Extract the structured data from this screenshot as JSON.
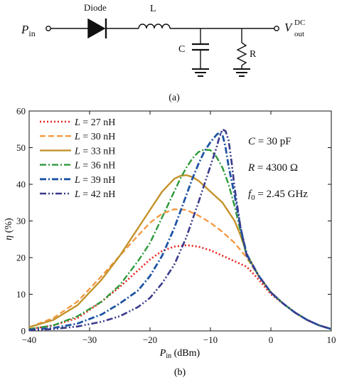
{
  "circuit": {
    "input_label": "P",
    "input_sub": "in",
    "diode_label": "Diode",
    "inductor_label": "L",
    "capacitor_label": "C",
    "resistor_label": "R",
    "output_label": "V",
    "output_sup": "DC",
    "output_sub": "out",
    "caption": "(a)"
  },
  "chart_data": {
    "type": "line",
    "title": "",
    "caption": "(b)",
    "xlabel": {
      "main": "P",
      "sub": "in",
      "unit": " (dBm)"
    },
    "ylabel": {
      "main": "η",
      "unit": " (%)"
    },
    "xlim": [
      -40,
      10
    ],
    "ylim": [
      0,
      60
    ],
    "xticks": [
      -40,
      -30,
      -20,
      -10,
      0,
      10
    ],
    "xtick_labels": [
      "−40",
      "−30",
      "−20",
      "−10",
      "0",
      "10"
    ],
    "yticks": [
      0,
      10,
      20,
      30,
      40,
      50,
      60
    ],
    "ytick_labels": [
      "0",
      "10",
      "20",
      "30",
      "40",
      "50",
      "60"
    ],
    "grid": false,
    "legend_position": "top-left",
    "legend_var": "L",
    "annotations": [
      {
        "var": "C",
        "text": " = 30 pF"
      },
      {
        "var": "R",
        "text": " = 4300 Ω"
      },
      {
        "var": "f",
        "sub": "0",
        "text": " = 2.45 GHz"
      }
    ],
    "series": [
      {
        "name": " = 27 nH",
        "color": "#e8231d",
        "dash": "dotted",
        "width": 2.6,
        "x": [
          -40,
          -36,
          -32,
          -28,
          -25,
          -22,
          -20,
          -18,
          -16,
          -14,
          -12,
          -10,
          -8,
          -6,
          -4,
          -2,
          -1,
          0,
          2,
          4,
          6,
          8,
          10
        ],
        "y": [
          0.5,
          1.5,
          3.5,
          8,
          12,
          16.5,
          19.5,
          21.8,
          23,
          23.4,
          23,
          22,
          20.5,
          19,
          17.5,
          14,
          12,
          10,
          7.5,
          5,
          3,
          1.5,
          0.5
        ]
      },
      {
        "name": " = 30 nH",
        "color": "#f39a45",
        "dash": "dashed",
        "width": 2.4,
        "x": [
          -40,
          -36,
          -32,
          -28,
          -25,
          -22,
          -20,
          -18,
          -16,
          -14,
          -12,
          -10,
          -8,
          -6,
          -4,
          -2,
          -1,
          0,
          2,
          4,
          6,
          8,
          10
        ],
        "y": [
          1,
          3.5,
          8,
          15,
          20.5,
          26,
          29.5,
          32,
          33.2,
          33,
          31.5,
          29.5,
          27,
          24,
          20,
          15,
          12.5,
          10.5,
          7.5,
          5,
          3,
          1.5,
          0.5
        ]
      },
      {
        "name": " = 33 nH",
        "color": "#c3922a",
        "dash": "solid",
        "width": 2.4,
        "x": [
          -40,
          -36,
          -32,
          -28,
          -25,
          -22,
          -20,
          -18,
          -16,
          -15,
          -14,
          -13,
          -12,
          -10,
          -8,
          -6,
          -5,
          -4,
          -2,
          0,
          2,
          4,
          6,
          8,
          10
        ],
        "y": [
          1,
          3,
          7,
          14,
          20.5,
          28,
          33,
          38,
          41.5,
          42.3,
          42.5,
          42,
          41,
          38,
          35,
          30,
          26,
          21,
          15,
          10.5,
          7.5,
          5,
          3,
          1.5,
          0.5
        ]
      },
      {
        "name": " = 36 nH",
        "color": "#2e9a3b",
        "dash": "dashdot",
        "width": 2.4,
        "x": [
          -40,
          -36,
          -32,
          -28,
          -25,
          -22,
          -20,
          -18,
          -16,
          -15,
          -14,
          -13,
          -12,
          -11,
          -10,
          -9,
          -8,
          -7,
          -6,
          -5,
          -4,
          -2,
          0,
          2,
          4,
          6,
          8,
          10
        ],
        "y": [
          0.5,
          1.5,
          4,
          8,
          12.5,
          19,
          24,
          31,
          38,
          41.5,
          44.5,
          47,
          48.8,
          49.5,
          49.3,
          47.5,
          44.5,
          40,
          34,
          27,
          20.5,
          15,
          10.5,
          7.5,
          5,
          3,
          1.5,
          0.5
        ]
      },
      {
        "name": " = 39 nH",
        "color": "#1f54a3",
        "dash": "dashdot",
        "width": 2.8,
        "x": [
          -40,
          -36,
          -32,
          -28,
          -25,
          -22,
          -20,
          -18,
          -16,
          -14,
          -13,
          -12,
          -11,
          -10,
          -9,
          -8.5,
          -8,
          -7.5,
          -7,
          -6,
          -5,
          -4,
          -2,
          0,
          2,
          4,
          6,
          8,
          10
        ],
        "y": [
          0.3,
          0.8,
          2,
          4.5,
          7.5,
          11,
          15,
          20.5,
          28,
          37,
          41.5,
          45.5,
          49,
          51.5,
          53.5,
          54.2,
          53.5,
          50,
          45,
          37,
          28,
          21,
          15,
          10.5,
          7.5,
          5,
          3,
          1.5,
          0.5
        ]
      },
      {
        "name": " = 42 nH",
        "color": "#3a3a8c",
        "dash": "dashdotdot",
        "width": 2.6,
        "x": [
          -40,
          -36,
          -32,
          -28,
          -25,
          -22,
          -20,
          -18,
          -16,
          -14,
          -12,
          -11,
          -10,
          -9,
          -8.5,
          -8,
          -7.5,
          -7,
          -6.5,
          -6,
          -5,
          -4,
          -2,
          0,
          2,
          4,
          6,
          8,
          10
        ],
        "y": [
          0.2,
          0.5,
          1.2,
          2.5,
          4,
          6.5,
          9,
          13,
          18,
          25.5,
          35,
          40,
          45,
          50,
          53,
          55,
          54.5,
          52,
          46,
          39,
          28,
          20.5,
          15,
          10.5,
          7.5,
          5,
          3,
          1.5,
          0.5
        ]
      }
    ]
  }
}
